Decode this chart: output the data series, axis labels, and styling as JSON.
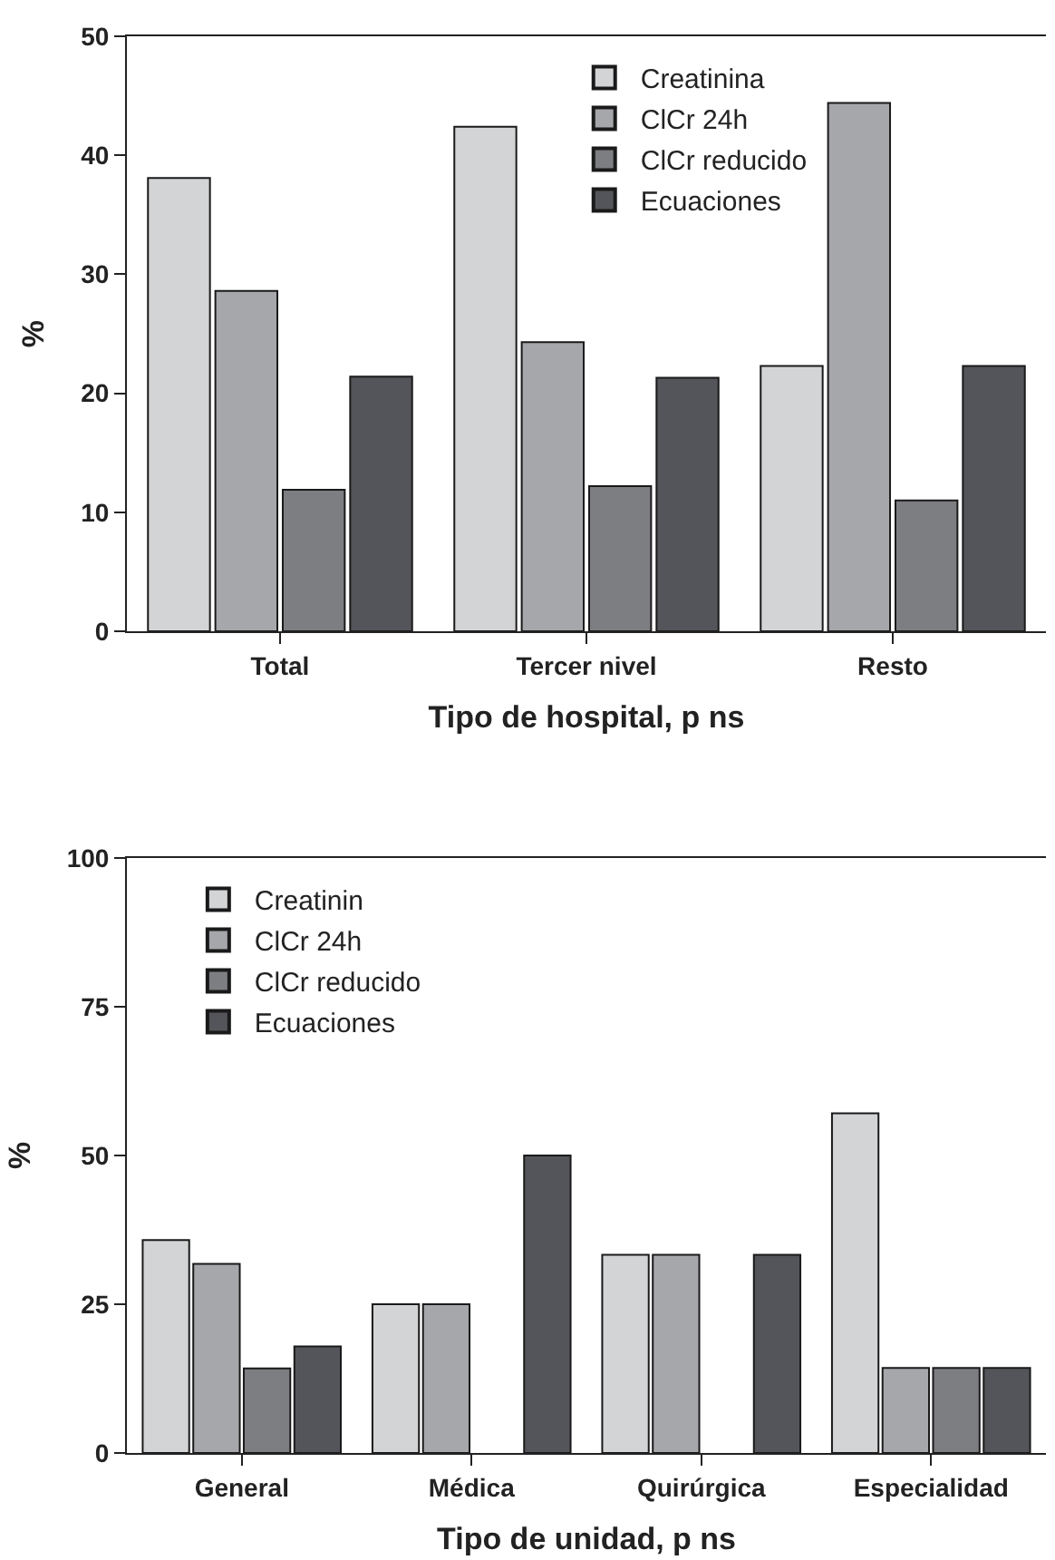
{
  "chart_data": [
    {
      "type": "bar",
      "xlabel": "Tipo de hospital, p ns",
      "ylabel": "%",
      "categories": [
        "Total",
        "Tercer nivel",
        "Resto"
      ],
      "ylim": [
        0,
        50
      ],
      "yticks": [
        0,
        10,
        20,
        30,
        40,
        50
      ],
      "legend": "top right",
      "series": [
        {
          "name": "Creatinina",
          "color": "#d3d4d6",
          "values": [
            38.1,
            42.4,
            22.3
          ]
        },
        {
          "name": "ClCr 24h",
          "color": "#a6a7ab",
          "values": [
            28.6,
            24.3,
            44.4
          ]
        },
        {
          "name": "ClCr reducido",
          "color": "#7d7e82",
          "values": [
            11.9,
            12.2,
            11.0
          ]
        },
        {
          "name": "Ecuaciones",
          "color": "#54555a",
          "values": [
            21.4,
            21.3,
            22.3
          ]
        }
      ]
    },
    {
      "type": "bar",
      "xlabel": "Tipo de unidad, p ns",
      "ylabel": "%",
      "categories": [
        "General",
        "Médica",
        "Quirúrgica",
        "Especialidad"
      ],
      "ylim": [
        0,
        100
      ],
      "yticks": [
        0,
        25,
        50,
        75,
        100
      ],
      "legend": "top left",
      "series": [
        {
          "name": "Creatinin",
          "color": "#d3d4d6",
          "values": [
            35.8,
            25,
            33.3,
            57.1
          ]
        },
        {
          "name": "ClCr 24h",
          "color": "#a6a7ab",
          "values": [
            31.8,
            25,
            33.3,
            14.3
          ]
        },
        {
          "name": "ClCr reducido",
          "color": "#7d7e82",
          "values": [
            14.2,
            null,
            null,
            14.3
          ]
        },
        {
          "name": "Ecuaciones",
          "color": "#54555a",
          "values": [
            17.9,
            50,
            33.3,
            14.3
          ]
        }
      ]
    }
  ]
}
